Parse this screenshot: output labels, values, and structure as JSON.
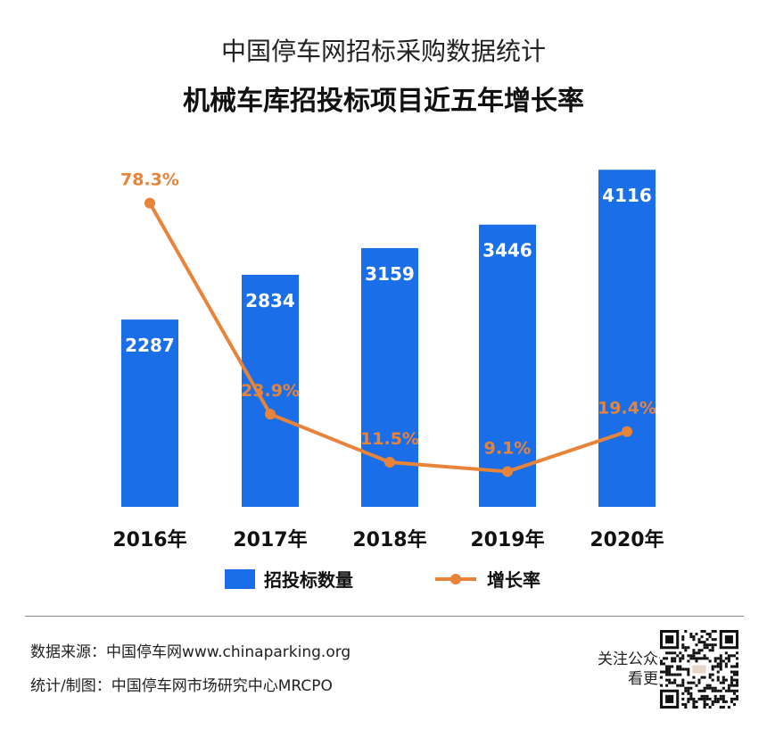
{
  "header": {
    "title": "中国停车网招标采购数据统计",
    "subtitle": "机械车库招投标项目近五年增长率"
  },
  "chart_data": {
    "type": "bar",
    "categories": [
      "2016年",
      "2017年",
      "2018年",
      "2019年",
      "2020年"
    ],
    "series": [
      {
        "name": "招投标数量",
        "type": "bar",
        "values": [
          2287,
          2834,
          3159,
          3446,
          4116
        ],
        "labels": [
          "2287",
          "2834",
          "3159",
          "3446",
          "4116"
        ]
      },
      {
        "name": "增长率",
        "type": "line",
        "values": [
          78.3,
          23.9,
          11.5,
          9.1,
          19.4
        ],
        "labels": [
          "78.3%",
          "23.9%",
          "11.5%",
          "9.1%",
          "19.4%"
        ]
      }
    ],
    "bar_ylim": [
      0,
      4500
    ],
    "line_ylim": [
      0,
      95
    ],
    "legend_position": "bottom",
    "colors": {
      "bar": "#1a6fe8",
      "line": "#e8833a"
    }
  },
  "footer": {
    "source": "数据来源：中国停车网www.chinaparking.org",
    "credit": "统计/制图：中国停车网市场研究中心MRCPO",
    "qr_line1": "关注公众号",
    "qr_line2": "看更多"
  }
}
